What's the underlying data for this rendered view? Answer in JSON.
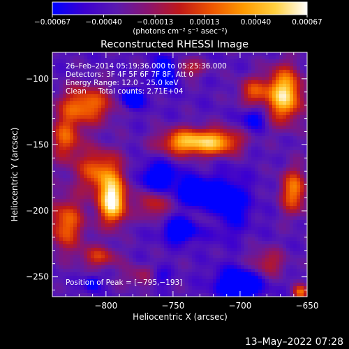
{
  "page": {
    "footer_timestamp": "13–May–2022 07:28"
  },
  "chart_data": {
    "type": "heatmap",
    "title": "Reconstructed RHESSI Image",
    "xlabel": "Heliocentric X (arcsec)",
    "ylabel": "Heliocentric Y (arcsec)",
    "xlim": [
      -840,
      -650
    ],
    "ylim": [
      -265,
      -80
    ],
    "x_ticks": [
      -800,
      -750,
      -700,
      -650
    ],
    "y_ticks": [
      -100,
      -150,
      -200,
      -250
    ],
    "x_tick_labels": [
      "−800",
      "−750",
      "−700",
      "−650"
    ],
    "y_tick_labels": [
      "−100",
      "−150",
      "−200",
      "−250"
    ],
    "colorbar": {
      "range": [
        -0.00067,
        0.00067
      ],
      "ticks": [
        -0.00067,
        -0.0004,
        -0.00013,
        0.00013,
        0.0004,
        0.00067
      ],
      "tick_labels": [
        "−0.00067",
        "−0.00040",
        "−0.00013",
        "0.00013",
        "0.00040",
        "0.00067"
      ],
      "unit_label": "(photons cm⁻² s⁻¹ asec⁻²)",
      "colors": [
        "#0000ff",
        "#3c00d0",
        "#5a1ab0",
        "#8a1470",
        "#c01818",
        "#ee5500",
        "#ff9a00",
        "#ffd040",
        "#ffffff"
      ]
    },
    "annotations": {
      "line1": "26–Feb–2014 05:19:36.000 to 05:25:36.000",
      "line2": "Detectors: 3F 4F 5F 6F 7F 8F, Att 0",
      "line3": "Energy Range: 12.0 – 25.0 keV",
      "line4": "Clean     Total counts: 2.71E+04",
      "peak": "Position of Peak = [−795,−193]"
    },
    "peak_position": [
      -795,
      -193
    ],
    "blobs": [
      {
        "x": -795,
        "y": -193,
        "sx": 7,
        "sy": 12,
        "amp": 1.0
      },
      {
        "x": -805,
        "y": -170,
        "sx": 12,
        "sy": 12,
        "amp": 0.55
      },
      {
        "x": -830,
        "y": -210,
        "sx": 10,
        "sy": 14,
        "amp": 0.55
      },
      {
        "x": -815,
        "y": -120,
        "sx": 14,
        "sy": 10,
        "amp": 0.6
      },
      {
        "x": -830,
        "y": -145,
        "sx": 8,
        "sy": 12,
        "amp": 0.5
      },
      {
        "x": -740,
        "y": -148,
        "sx": 14,
        "sy": 7,
        "amp": 0.75
      },
      {
        "x": -715,
        "y": -148,
        "sx": 12,
        "sy": 7,
        "amp": 0.6
      },
      {
        "x": -667,
        "y": -112,
        "sx": 9,
        "sy": 14,
        "amp": 0.9
      },
      {
        "x": -690,
        "y": -110,
        "sx": 8,
        "sy": 8,
        "amp": 0.45
      },
      {
        "x": -660,
        "y": -185,
        "sx": 7,
        "sy": 12,
        "amp": 0.6
      },
      {
        "x": -765,
        "y": -195,
        "sx": 8,
        "sy": 8,
        "amp": 0.4
      },
      {
        "x": -805,
        "y": -235,
        "sx": 10,
        "sy": 6,
        "amp": 0.4
      },
      {
        "x": -720,
        "y": -205,
        "sx": 8,
        "sy": 6,
        "amp": 0.3
      },
      {
        "x": -740,
        "y": -92,
        "sx": 10,
        "sy": 5,
        "amp": 0.35
      },
      {
        "x": -770,
        "y": -250,
        "sx": 12,
        "sy": 6,
        "amp": 0.3
      },
      {
        "x": -680,
        "y": -240,
        "sx": 10,
        "sy": 8,
        "amp": 0.35
      },
      {
        "x": -655,
        "y": -262,
        "sx": 4,
        "sy": 4,
        "amp": 0.55
      },
      {
        "x": -780,
        "y": -115,
        "sx": 5,
        "sy": 5,
        "amp": -0.7
      },
      {
        "x": -755,
        "y": -95,
        "sx": 6,
        "sy": 8,
        "amp": -0.6
      },
      {
        "x": -760,
        "y": -175,
        "sx": 10,
        "sy": 8,
        "amp": -0.5
      },
      {
        "x": -735,
        "y": -185,
        "sx": 6,
        "sy": 6,
        "amp": -0.75
      },
      {
        "x": -745,
        "y": -215,
        "sx": 8,
        "sy": 6,
        "amp": -0.6
      },
      {
        "x": -712,
        "y": -195,
        "sx": 12,
        "sy": 14,
        "amp": -0.5
      },
      {
        "x": -700,
        "y": -255,
        "sx": 12,
        "sy": 8,
        "amp": -0.6
      },
      {
        "x": -760,
        "y": -250,
        "sx": 6,
        "sy": 5,
        "amp": -0.4
      },
      {
        "x": -690,
        "y": -130,
        "sx": 6,
        "sy": 6,
        "amp": -0.35
      },
      {
        "x": -810,
        "y": -255,
        "sx": 4,
        "sy": 4,
        "amp": -0.4
      }
    ]
  }
}
